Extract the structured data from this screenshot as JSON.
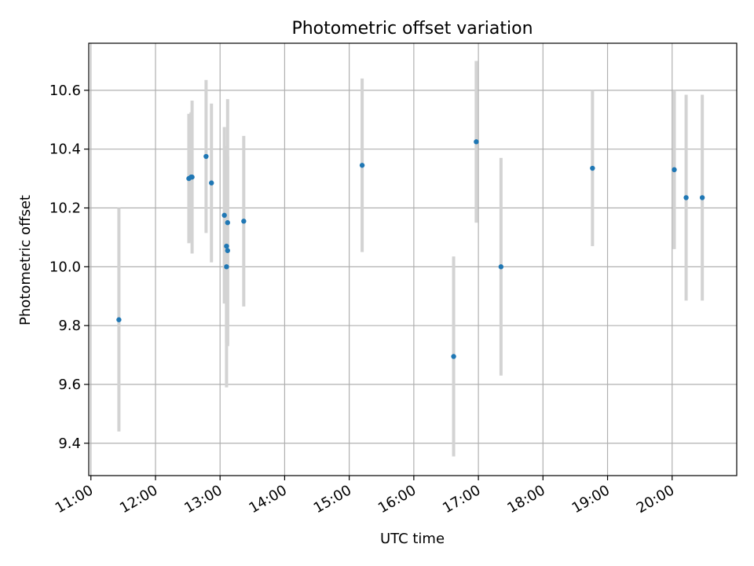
{
  "chart_data": {
    "type": "scatter",
    "title": "Photometric offset variation",
    "xlabel": "UTC time",
    "ylabel": "Photometric offset",
    "x_tick_labels": [
      "11:00",
      "12:00",
      "13:00",
      "14:00",
      "15:00",
      "16:00",
      "17:00",
      "18:00",
      "19:00",
      "20:00"
    ],
    "y_tick_labels": [
      "9.4",
      "9.6",
      "9.8",
      "10.0",
      "10.2",
      "10.4",
      "10.6"
    ],
    "y_ticks": [
      9.4,
      9.6,
      9.8,
      10.0,
      10.2,
      10.4,
      10.6
    ],
    "xlim": [
      "10:58",
      "21:00"
    ],
    "ylim": [
      9.29,
      10.76
    ],
    "grid": true,
    "colors": {
      "point": "#1f77b4",
      "errorbar": "#d3d3d3",
      "grid": "#b0b0b0"
    },
    "points": [
      {
        "x": "11:26",
        "y": 9.82,
        "err": 0.38
      },
      {
        "x": "12:31",
        "y": 10.3,
        "err": 0.22
      },
      {
        "x": "12:33",
        "y": 10.305,
        "err": 0.22
      },
      {
        "x": "12:34",
        "y": 10.305,
        "err": 0.26
      },
      {
        "x": "12:47",
        "y": 10.375,
        "err": 0.26
      },
      {
        "x": "12:52",
        "y": 10.285,
        "err": 0.27
      },
      {
        "x": "13:04",
        "y": 10.175,
        "err": 0.3
      },
      {
        "x": "13:06",
        "y": 10.0,
        "err": 0.41
      },
      {
        "x": "13:06",
        "y": 10.07,
        "err": 0.33
      },
      {
        "x": "13:07",
        "y": 10.055,
        "err": 0.32
      },
      {
        "x": "13:07",
        "y": 10.15,
        "err": 0.42
      },
      {
        "x": "13:22",
        "y": 10.155,
        "err": 0.29
      },
      {
        "x": "15:12",
        "y": 10.345,
        "err": 0.295
      },
      {
        "x": "16:37",
        "y": 9.695,
        "err": 0.34
      },
      {
        "x": "16:58",
        "y": 10.425,
        "err": 0.275
      },
      {
        "x": "17:21",
        "y": 10.0,
        "err": 0.37
      },
      {
        "x": "18:46",
        "y": 10.335,
        "err": 0.265
      },
      {
        "x": "20:02",
        "y": 10.33,
        "err": 0.27
      },
      {
        "x": "20:13",
        "y": 10.235,
        "err": 0.35
      },
      {
        "x": "20:28",
        "y": 10.235,
        "err": 0.35
      }
    ]
  }
}
